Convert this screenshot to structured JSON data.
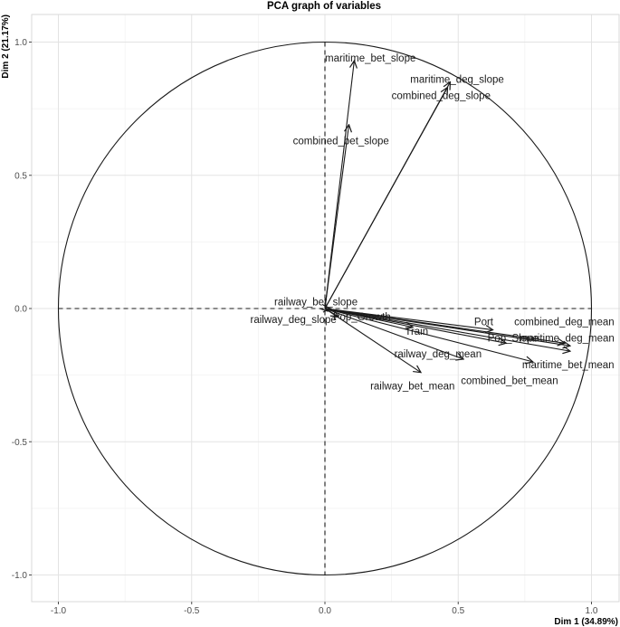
{
  "chart_data": {
    "type": "scatter",
    "title": "PCA graph of variables",
    "xlabel": "Dim 1 (34.89%)",
    "ylabel": "Dim 2 (21.17%)",
    "xlim": [
      -1.1,
      1.1
    ],
    "ylim": [
      -1.1,
      1.1
    ],
    "x_ticks": [
      "-1.0",
      "-0.5",
      "0.0",
      "0.5",
      "1.0"
    ],
    "y_ticks": [
      "1.0",
      "0.5",
      "0.0",
      "-0.5",
      "-1.0"
    ],
    "grid": true,
    "unit_circle": true,
    "variables": [
      {
        "name": "maritime_bet_slope",
        "x": 0.11,
        "y": 0.93
      },
      {
        "name": "maritime_deg_slope",
        "x": 0.47,
        "y": 0.85
      },
      {
        "name": "combined_deg_slope",
        "x": 0.46,
        "y": 0.83
      },
      {
        "name": "combined_bet_slope",
        "x": 0.09,
        "y": 0.69
      },
      {
        "name": "railway_bet_slope",
        "x": 0.02,
        "y": 0.0
      },
      {
        "name": "railway_deg_slope",
        "x": 0.01,
        "y": -0.01
      },
      {
        "name": "Pop_Growth",
        "x": 0.05,
        "y": -0.03
      },
      {
        "name": "Train",
        "x": 0.33,
        "y": -0.07
      },
      {
        "name": "Port",
        "x": 0.63,
        "y": -0.08
      },
      {
        "name": "combined_deg_mean",
        "x": 0.9,
        "y": -0.13
      },
      {
        "name": "Pop_Slope",
        "x": 0.68,
        "y": -0.13
      },
      {
        "name": "maritime_deg_mean",
        "x": 0.92,
        "y": -0.14
      },
      {
        "name": "maritime_bet_mean",
        "x": 0.92,
        "y": -0.16
      },
      {
        "name": "railway_deg_mean",
        "x": 0.52,
        "y": -0.19
      },
      {
        "name": "combined_bet_mean",
        "x": 0.78,
        "y": -0.2
      },
      {
        "name": "railway_bet_mean",
        "x": 0.36,
        "y": -0.24
      }
    ],
    "labels": [
      {
        "name": "maritime_bet_slope",
        "text": "maritime_bet_slope",
        "lx": 0.0,
        "ly": 0.94,
        "anchor": "start"
      },
      {
        "name": "maritime_deg_slope",
        "text": "maritime_deg_slope",
        "lx": 0.32,
        "ly": 0.86,
        "anchor": "start"
      },
      {
        "name": "combined_deg_slope",
        "text": "combined_deg_slope",
        "lx": 0.25,
        "ly": 0.8,
        "anchor": "start"
      },
      {
        "name": "combined_bet_slope",
        "text": "combined_bet_slope",
        "lx": -0.12,
        "ly": 0.63,
        "anchor": "start"
      },
      {
        "name": "railway_bet_slope",
        "text": "railway_bet_slope",
        "lx": -0.19,
        "ly": 0.025,
        "anchor": "start"
      },
      {
        "name": "railway_deg_slope",
        "text": "railway_deg_slope",
        "lx": -0.28,
        "ly": -0.04,
        "anchor": "start"
      },
      {
        "name": "Pop_Growth",
        "text": "Pop_Growth",
        "lx": 0.03,
        "ly": -0.03,
        "anchor": "start"
      },
      {
        "name": "Train",
        "text": "Train",
        "lx": 0.3,
        "ly": -0.085,
        "anchor": "start"
      },
      {
        "name": "Port",
        "text": "Port",
        "lx": 0.56,
        "ly": -0.05,
        "anchor": "start"
      },
      {
        "name": "combined_deg_mean",
        "text": "combined_deg_mean",
        "lx": 0.71,
        "ly": -0.05,
        "anchor": "start"
      },
      {
        "name": "Pop_Slope",
        "text": "Pop_Slope",
        "lx": 0.61,
        "ly": -0.11,
        "anchor": "start"
      },
      {
        "name": "maritime_deg_mean",
        "text": "maritime_deg_mean",
        "lx": 0.73,
        "ly": -0.11,
        "anchor": "start"
      },
      {
        "name": "maritime_bet_mean",
        "text": "maritime_bet_mean",
        "lx": 0.74,
        "ly": -0.21,
        "anchor": "start"
      },
      {
        "name": "railway_deg_mean",
        "text": "railway_deg_mean",
        "lx": 0.26,
        "ly": -0.17,
        "anchor": "start"
      },
      {
        "name": "combined_bet_mean",
        "text": "combined_bet_mean",
        "lx": 0.51,
        "ly": -0.27,
        "anchor": "start"
      },
      {
        "name": "railway_bet_mean",
        "text": "railway_bet_mean",
        "lx": 0.17,
        "ly": -0.29,
        "anchor": "start"
      }
    ]
  }
}
